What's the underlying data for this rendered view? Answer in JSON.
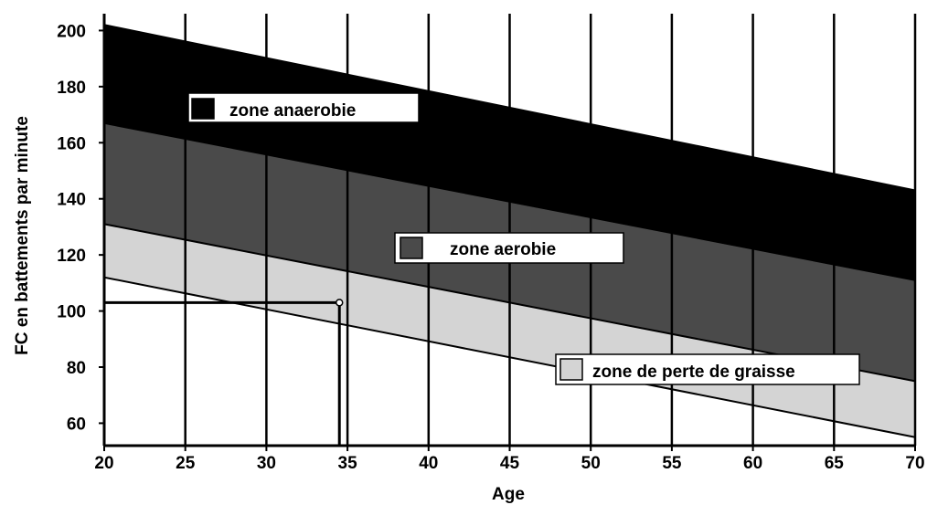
{
  "chart_data": {
    "type": "area",
    "title": "",
    "xlabel": "Age",
    "ylabel": "FC en battements par minute",
    "xlim": [
      20,
      70
    ],
    "ylim": [
      52,
      206
    ],
    "x_ticks": [
      20,
      25,
      30,
      35,
      40,
      45,
      50,
      55,
      60,
      65,
      70
    ],
    "y_ticks": [
      60,
      80,
      100,
      120,
      140,
      160,
      180,
      200
    ],
    "vertical_grid": true,
    "x": [
      20,
      70
    ],
    "boundaries": {
      "max_hr": [
        202,
        143
      ],
      "anaerobic_lower": [
        167,
        111
      ],
      "aerobic_lower": [
        131,
        75
      ],
      "fat_burn_lower": [
        112,
        55
      ]
    },
    "zones": [
      {
        "name": "zone anaerobie",
        "color": "#000000",
        "upper": "max_hr",
        "lower": "anaerobic_lower"
      },
      {
        "name": "zone aerobie",
        "color": "#4a4a4a",
        "upper": "anaerobic_lower",
        "lower": "aerobic_lower"
      },
      {
        "name": "zone de perte de graisse",
        "color": "#d4d4d4",
        "upper": "aerobic_lower",
        "lower": "fat_burn_lower"
      }
    ],
    "annotation": {
      "x": 34.5,
      "y": 103
    }
  }
}
